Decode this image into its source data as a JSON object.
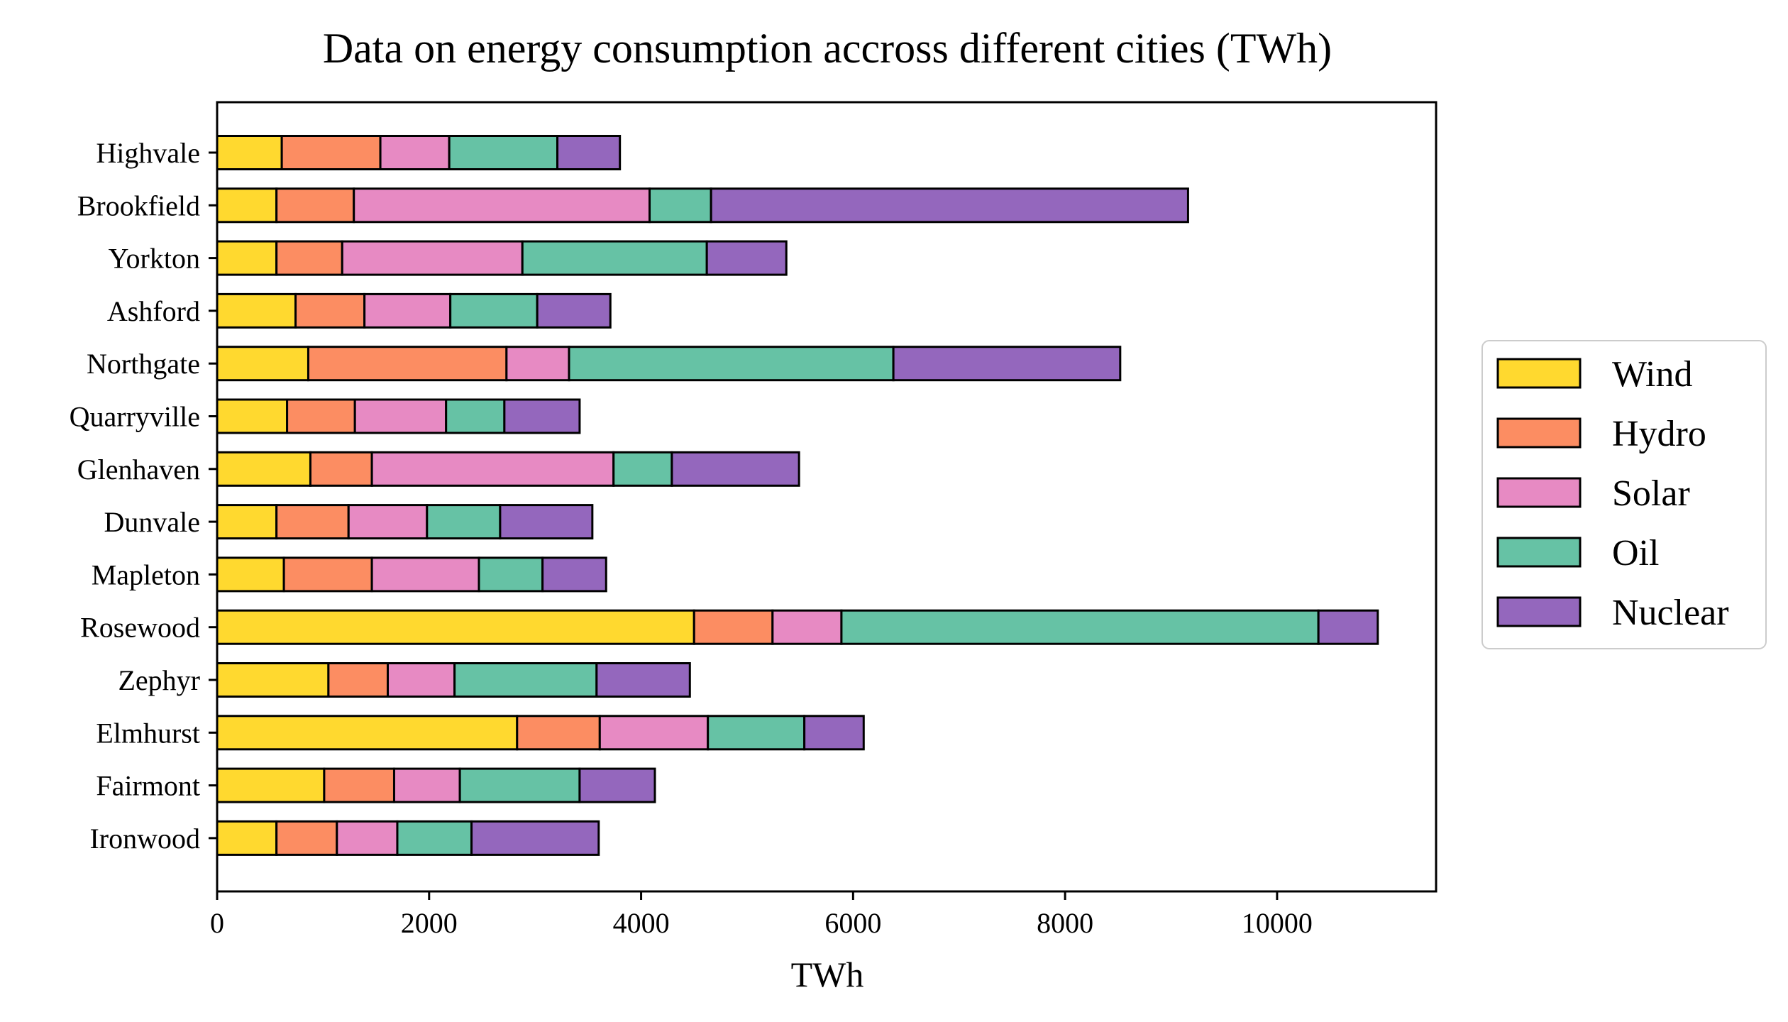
{
  "chart_data": {
    "type": "bar",
    "orientation": "horizontal",
    "stacked": true,
    "title": "Data on energy consumption accross different cities (TWh)",
    "xlabel": "TWh",
    "ylabel": "",
    "xlim": [
      0,
      11500
    ],
    "xticks": [
      0,
      2000,
      4000,
      6000,
      8000,
      10000
    ],
    "xtick_labels": [
      "0",
      "2000",
      "4000",
      "6000",
      "8000",
      "10000"
    ],
    "grid": false,
    "legend_position": "right",
    "categories": [
      "Highvale",
      "Brookfield",
      "Yorkton",
      "Ashford",
      "Northgate",
      "Quarryville",
      "Glenhaven",
      "Dunvale",
      "Mapleton",
      "Rosewood",
      "Zephyr",
      "Elmhurst",
      "Fairmont",
      "Ironwood"
    ],
    "series": [
      {
        "name": "Wind",
        "color": "#FFD92F",
        "values": [
          610,
          560,
          560,
          740,
          860,
          660,
          880,
          560,
          630,
          4500,
          1050,
          2830,
          1010,
          560
        ]
      },
      {
        "name": "Hydro",
        "color": "#FC8D62",
        "values": [
          930,
          730,
          620,
          650,
          1870,
          640,
          580,
          680,
          830,
          740,
          560,
          780,
          660,
          570
        ]
      },
      {
        "name": "Solar",
        "color": "#E78AC3",
        "values": [
          650,
          2790,
          1700,
          810,
          590,
          860,
          2280,
          740,
          1010,
          650,
          630,
          1020,
          620,
          570
        ]
      },
      {
        "name": "Oil",
        "color": "#66C2A5",
        "values": [
          1020,
          580,
          1740,
          820,
          3060,
          550,
          550,
          690,
          600,
          4500,
          1340,
          910,
          1130,
          700
        ]
      },
      {
        "name": "Nuclear",
        "color": "#9467BD",
        "values": [
          590,
          4500,
          750,
          690,
          2140,
          710,
          1200,
          870,
          600,
          560,
          880,
          560,
          710,
          1200
        ]
      }
    ]
  }
}
